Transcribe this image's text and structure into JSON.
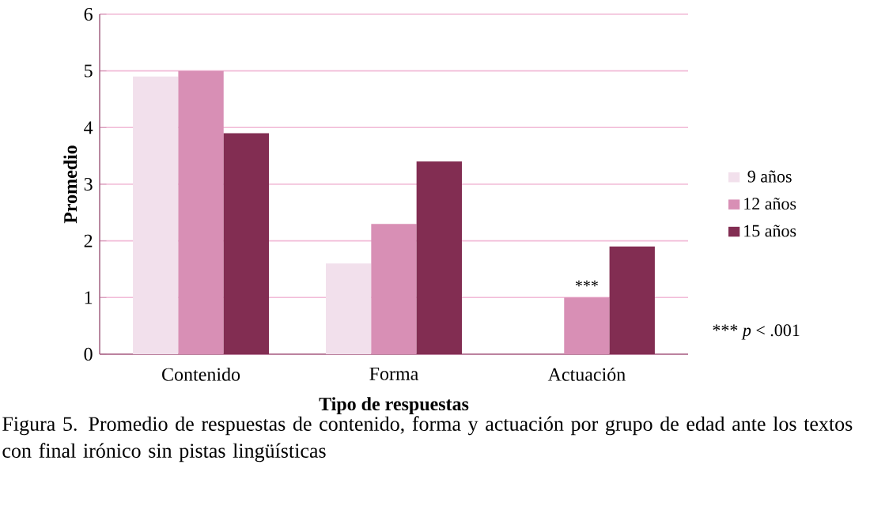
{
  "chart_data": {
    "type": "bar",
    "xlabel": "Tipo de respuestas",
    "ylabel": "Promedio",
    "categories": [
      "Contenido",
      "Forma",
      "Actuación"
    ],
    "series": [
      {
        "name": "9 años",
        "color": "#f2e0ec",
        "values": [
          4.9,
          1.6,
          null
        ]
      },
      {
        "name": "12 años",
        "color": "#d88fb5",
        "values": [
          5.0,
          2.3,
          1.0
        ]
      },
      {
        "name": "15 años",
        "color": "#822d52",
        "values": [
          3.9,
          3.4,
          1.9
        ]
      }
    ],
    "ylim": [
      0,
      6
    ],
    "yticks": [
      0,
      1,
      2,
      3,
      4,
      5,
      6
    ],
    "grid": "y",
    "legend": "right",
    "annotations": [
      {
        "text": "***",
        "x": "Actuación",
        "y": 1.0
      },
      "*** *p* < .001",
      "Figura 5. Promedio de respuestas de contenido, forma y actuación por grupo de edad ante los textos con final irónico sin pistas lingüísticas"
    ]
  }
}
